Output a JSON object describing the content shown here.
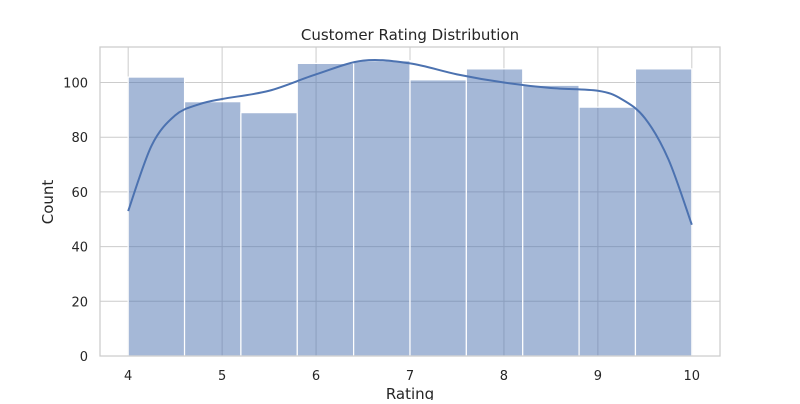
{
  "chart_data": {
    "type": "bar",
    "title": "Customer Rating Distribution",
    "xlabel": "Rating",
    "ylabel": "Count",
    "bins": [
      [
        4.0,
        4.6
      ],
      [
        4.6,
        5.2
      ],
      [
        5.2,
        5.8
      ],
      [
        5.8,
        6.4
      ],
      [
        6.4,
        7.0
      ],
      [
        7.0,
        7.6
      ],
      [
        7.6,
        8.2
      ],
      [
        8.2,
        8.8
      ],
      [
        8.8,
        9.4
      ],
      [
        9.4,
        10.0
      ]
    ],
    "values": [
      102,
      93,
      89,
      107,
      108,
      101,
      105,
      99,
      91,
      105
    ],
    "xlim": [
      4,
      10
    ],
    "ylim": [
      0,
      113
    ],
    "xticks": [
      4,
      5,
      6,
      7,
      8,
      9,
      10
    ],
    "yticks": [
      0,
      20,
      40,
      60,
      80,
      100
    ],
    "grid": true,
    "bar_color": "#4c72b0",
    "kde": {
      "x": [
        4.0,
        4.25,
        4.5,
        4.75,
        5.0,
        5.5,
        6.0,
        6.5,
        7.0,
        7.5,
        8.0,
        8.5,
        9.0,
        9.25,
        9.5,
        9.75,
        10.0
      ],
      "y": [
        53,
        77,
        88,
        92,
        94,
        97,
        103,
        108,
        107,
        103,
        100,
        98,
        97,
        94,
        87,
        72,
        48
      ],
      "color": "#4c72b0"
    }
  }
}
